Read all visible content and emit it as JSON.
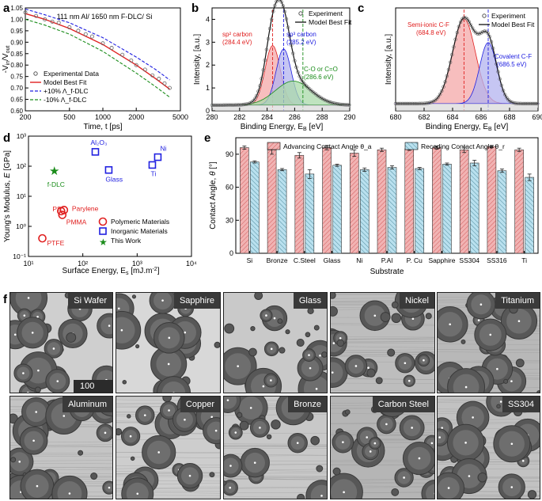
{
  "panel_letters": {
    "a": "a",
    "b": "b",
    "c": "c",
    "d": "d",
    "e": "e",
    "f": "f"
  },
  "colors": {
    "red": "#e02020",
    "blue": "#2020e0",
    "green": "#1a8c1a",
    "red_fill": "#f4a8a8",
    "blue_fill": "#b3b3ef",
    "green_fill": "#a9d9a9",
    "gray_fill": "#d8d8d8",
    "bar_red": "#f1b3b3",
    "bar_blue": "#b9e0ee"
  },
  "chart_data": [
    {
      "id": "a",
      "type": "line",
      "title": "111 nm Al/ 1650 nm F-DLC/ Si",
      "xlabel": "Time, t [ps]",
      "ylabel": "-V_in/V_out",
      "xscale": "log",
      "xlim": [
        200,
        5000
      ],
      "ylim": [
        0.6,
        1.05
      ],
      "xticks": [
        200,
        500,
        1000,
        2000,
        5000
      ],
      "xtick_labels": [
        "200",
        "500",
        "1000",
        "2000",
        "5000"
      ],
      "yticks": [
        0.6,
        0.65,
        0.7,
        0.75,
        0.8,
        0.85,
        0.9,
        0.95,
        1.0,
        1.05
      ],
      "ytick_labels": [
        "0.60",
        "0.65",
        "0.70",
        "0.75",
        "0.80",
        "0.85",
        "0.90",
        "0.95",
        "1.00",
        "1.05"
      ],
      "legend": [
        "Experimental Data",
        "Model Best Fit",
        "+10% Λ_f-DLC",
        "-10% Λ_f-DLC"
      ],
      "series": [
        {
          "name": "Model Best Fit",
          "x": [
            200,
            300,
            500,
            1000,
            2000,
            3000,
            4000
          ],
          "y": [
            1.025,
            1.0,
            0.96,
            0.89,
            0.8,
            0.74,
            0.695
          ]
        },
        {
          "name": "+10%",
          "x": [
            200,
            300,
            500,
            1000,
            2000,
            3000,
            4000
          ],
          "y": [
            1.045,
            1.02,
            0.985,
            0.92,
            0.835,
            0.78,
            0.735
          ]
        },
        {
          "name": "-10%",
          "x": [
            200,
            300,
            500,
            1000,
            2000,
            3000,
            4000
          ],
          "y": [
            1.0,
            0.975,
            0.935,
            0.86,
            0.765,
            0.705,
            0.66
          ]
        },
        {
          "name": "Experimental Data",
          "x": [
            200,
            250,
            300,
            350,
            400,
            500,
            600,
            700,
            800,
            1000,
            1200,
            1500,
            1800,
            2000,
            2400,
            2800,
            3200,
            3600,
            4000
          ],
          "y": [
            1.03,
            1.015,
            1.0,
            0.99,
            0.985,
            0.965,
            0.95,
            0.935,
            0.925,
            0.895,
            0.875,
            0.845,
            0.82,
            0.8,
            0.78,
            0.755,
            0.74,
            0.72,
            0.7
          ]
        }
      ]
    },
    {
      "id": "b",
      "type": "line",
      "xlabel": "Binding Energy, E_B [eV]",
      "ylabel": "Intensity, [a.u.]",
      "xlim": [
        280,
        290
      ],
      "ylim": [
        0,
        4.5
      ],
      "xticks": [
        280,
        282,
        284,
        286,
        288,
        290
      ],
      "xtick_labels": [
        "280",
        "282",
        "284",
        "286",
        "288",
        "290"
      ],
      "yticks": [
        0,
        1,
        2,
        3,
        4
      ],
      "ytick_labels": [
        "0",
        "1",
        "2",
        "3",
        "4"
      ],
      "legend": [
        "Experiment",
        "Model Best Fit"
      ],
      "annotations": [
        {
          "line1": "sp² carbon",
          "line2": "(284.4 eV)",
          "color": "red"
        },
        {
          "line1": "sp³ carbon",
          "line2": "(285.2 eV)",
          "color": "blue"
        },
        {
          "line1": "C-O or C=O",
          "line2": "(286.6 eV)",
          "color": "green"
        }
      ],
      "peaks": [
        {
          "name": "sp2",
          "center": 284.4,
          "height": 2.6,
          "width": 0.55,
          "vline": 284.4
        },
        {
          "name": "sp3",
          "center": 285.2,
          "height": 2.45,
          "width": 0.55,
          "vline": 285.2
        },
        {
          "name": "C-O",
          "center": 285.9,
          "height": 1.05,
          "width": 1.3,
          "vline": 286.6
        }
      ],
      "baseline": 0.25
    },
    {
      "id": "c",
      "type": "line",
      "xlabel": "Binding Energy, E_B [eV]",
      "ylabel": "Intensity, [a.u.]",
      "xlim": [
        680,
        690
      ],
      "ylim": [
        0,
        4.3
      ],
      "xticks": [
        680,
        682,
        684,
        686,
        688,
        690
      ],
      "xtick_labels": [
        "680",
        "682",
        "684",
        "686",
        "688",
        "690"
      ],
      "legend": [
        "Experiment",
        "Model Best Fit"
      ],
      "annotations": [
        {
          "line1": "Semi-ionic C-F",
          "line2": "(684.8 eV)",
          "color": "red"
        },
        {
          "line1": "Covalent C-F",
          "line2": "(686.5 eV)",
          "color": "blue"
        }
      ],
      "peaks": [
        {
          "name": "semi-ionic",
          "center": 684.8,
          "height": 3.55,
          "width": 0.8,
          "vline": 684.8
        },
        {
          "name": "covalent",
          "center": 686.5,
          "height": 2.55,
          "width": 0.6,
          "vline": 686.5
        }
      ],
      "baseline": 0.3
    },
    {
      "id": "d",
      "type": "scatter",
      "xlabel": "Surface Energy, E_s [mJ.m⁻²]",
      "ylabel": "Young's Modulus, E [GPa]",
      "xscale": "log",
      "yscale": "log",
      "xlim": [
        10,
        10000
      ],
      "ylim": [
        0.1,
        1000
      ],
      "xtick_labels": [
        "10¹",
        "10²",
        "10³",
        "10⁴"
      ],
      "ytick_labels": [
        "10⁻¹",
        "10⁰",
        "10¹",
        "10²",
        "10³"
      ],
      "legend": [
        "Polymeric Materials",
        "Inorganic Materials",
        "This Work"
      ],
      "points": [
        {
          "label": "PTFE",
          "x": 18,
          "y": 0.4,
          "kind": "polymer"
        },
        {
          "label": "PS",
          "x": 40,
          "y": 3.2,
          "kind": "polymer"
        },
        {
          "label": "Parylene",
          "x": 45,
          "y": 3.5,
          "kind": "polymer"
        },
        {
          "label": "PMMA",
          "x": 42,
          "y": 2.4,
          "kind": "polymer"
        },
        {
          "label": "Al₂O₃",
          "x": 170,
          "y": 300,
          "kind": "inorganic"
        },
        {
          "label": "Glass",
          "x": 300,
          "y": 75,
          "kind": "inorganic"
        },
        {
          "label": "Ni",
          "x": 2400,
          "y": 200,
          "kind": "inorganic"
        },
        {
          "label": "Ti",
          "x": 1900,
          "y": 110,
          "kind": "inorganic"
        },
        {
          "label": "f-DLC",
          "x": 30,
          "y": 70,
          "kind": "this"
        }
      ]
    },
    {
      "id": "e",
      "type": "bar",
      "xlabel": "Substrate",
      "ylabel": "Contact Angle, θ [°]",
      "ylim": [
        0,
        105
      ],
      "yticks": [
        0,
        30,
        60,
        90
      ],
      "ytick_labels": [
        "0",
        "30",
        "60",
        "90"
      ],
      "categories": [
        "Si",
        "Bronze",
        "C.Steel",
        "Glass",
        "Ni",
        "P.Al",
        "P. Cu",
        "Sapphire",
        "SS304",
        "SS316",
        "Ti"
      ],
      "series": [
        {
          "name": "Advancing Contact Angle θ_a",
          "values": [
            96,
            94,
            89,
            96,
            91,
            94,
            95,
            96,
            94,
            97,
            94
          ],
          "errors": [
            1.5,
            4,
            2.5,
            2,
            3,
            1.5,
            1.5,
            1.5,
            2.5,
            1,
            1.5
          ]
        },
        {
          "name": "Receding Contact Angle θ_r",
          "values": [
            83,
            76,
            72,
            80,
            76,
            78,
            77,
            81,
            82,
            75,
            69
          ],
          "errors": [
            1,
            1,
            4,
            1,
            1.5,
            1.5,
            1,
            1,
            2.5,
            1.5,
            3
          ]
        }
      ]
    }
  ],
  "micrographs": {
    "scale_text": "100 μm",
    "labels": [
      "Si Wafer",
      "Sapphire",
      "Glass",
      "Nickel",
      "Titanium",
      "Aluminum",
      "Copper",
      "Bronze",
      "Carbon Steel",
      "SS304"
    ]
  }
}
